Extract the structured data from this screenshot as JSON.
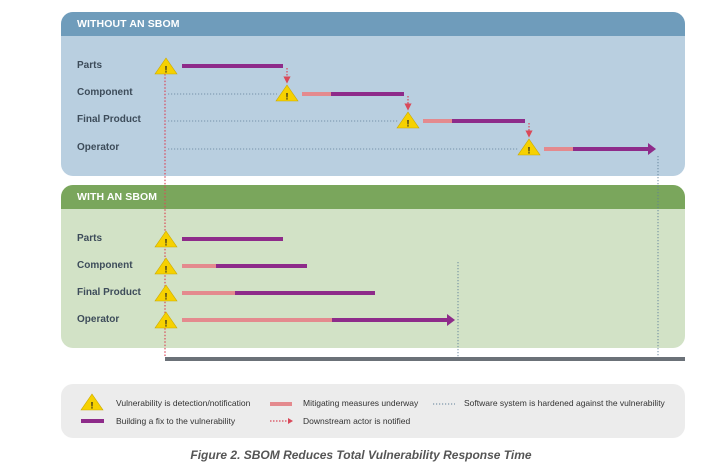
{
  "sections": {
    "without": {
      "title": "WITHOUT AN SBOM",
      "rows": [
        "Parts",
        "Component",
        "Final Product",
        "Operator"
      ]
    },
    "with": {
      "title": "WITH AN SBOM",
      "rows": [
        "Parts",
        "Component",
        "Final Product",
        "Operator"
      ]
    }
  },
  "alert_symbol": "!",
  "legend": {
    "detection": "Vulnerability is detection/notification",
    "building_fix": "Building a fix to the vulnerability",
    "mitigating": "Mitigating measures underway",
    "notified": "Downstream actor is notified",
    "hardened": "Software system is hardened against the vulnerability"
  },
  "caption": "Figure 2. SBOM Reduces Total Vulnerability Response Time",
  "colors": {
    "without_header": "#6f9cbb",
    "without_panel": "#b9cfe0",
    "with_header": "#7aa65c",
    "with_panel": "#d2e2c6",
    "fix_bar": "#8e2b8a",
    "mitigation_bar": "#e48a8e",
    "notify_arrow": "#d9495a",
    "warning_fill": "#f6d100",
    "timeline": "#6b7178"
  }
}
